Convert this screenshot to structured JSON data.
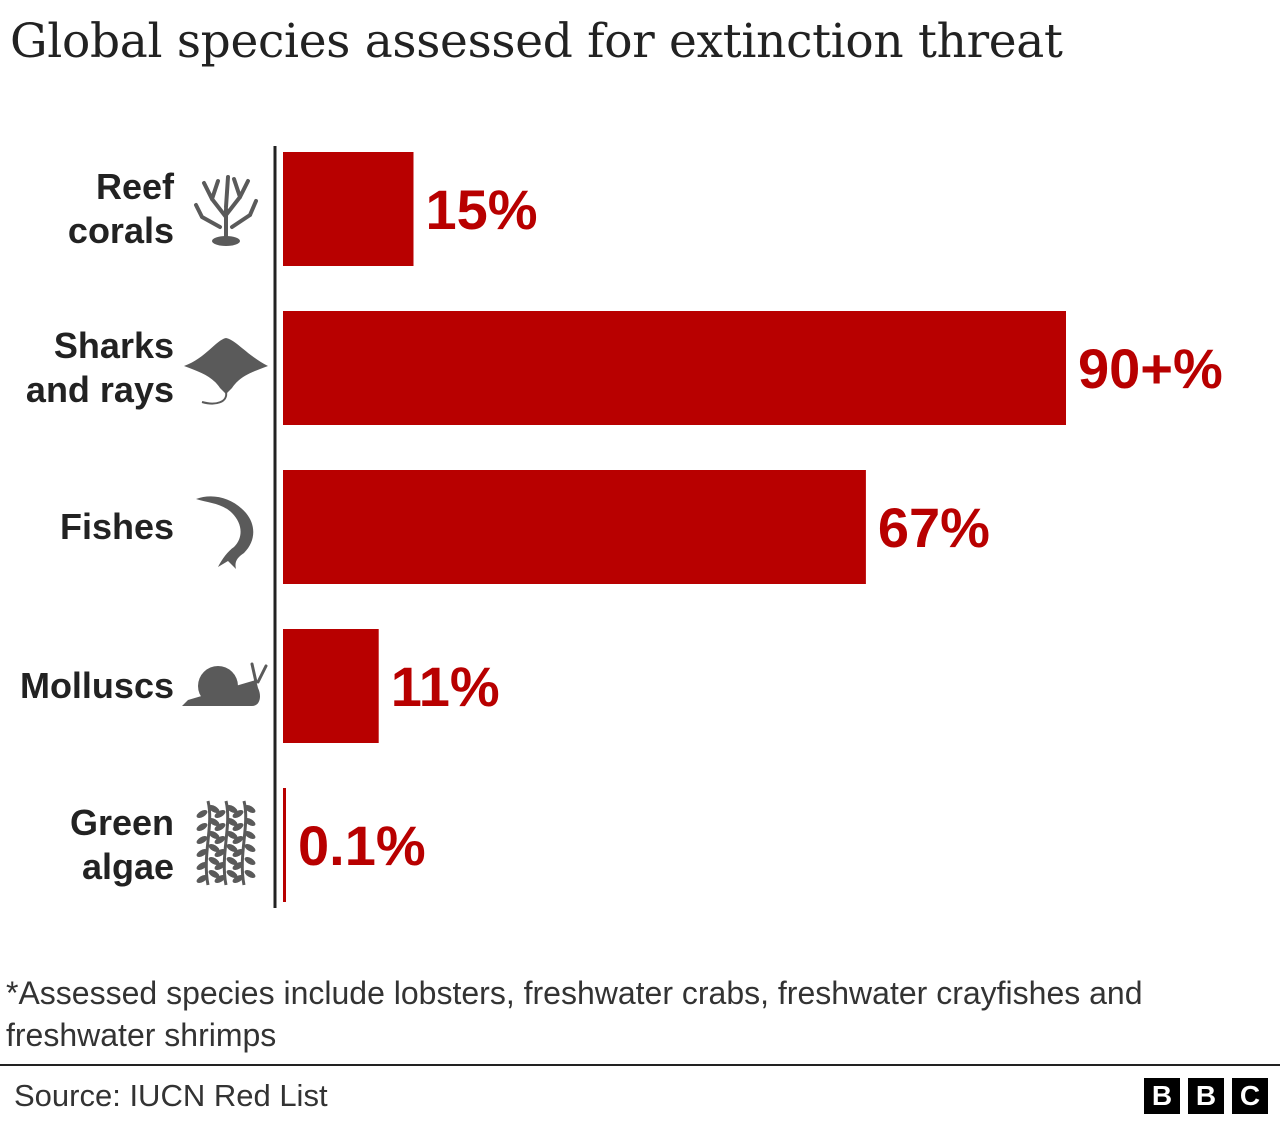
{
  "title": "Global species assessed for extinction threat",
  "chart_data": {
    "type": "bar",
    "orientation": "horizontal",
    "categories": [
      {
        "lines": [
          "Reef",
          "corals"
        ],
        "icon": "coral-icon"
      },
      {
        "lines": [
          "Sharks",
          "and rays"
        ],
        "icon": "manta-ray-icon"
      },
      {
        "lines": [
          "Fishes"
        ],
        "icon": "fish-icon"
      },
      {
        "lines": [
          "Molluscs"
        ],
        "icon": "snail-icon"
      },
      {
        "lines": [
          "Green",
          "algae"
        ],
        "icon": "algae-icon"
      }
    ],
    "values": [
      15,
      90,
      67,
      11,
      0.1
    ],
    "value_labels": [
      "15%",
      "90+%",
      "67%",
      "11%",
      "0.1%"
    ],
    "xlim": [
      0,
      100
    ],
    "bar_color": "#b80000",
    "icon_color": "#5a5a5a",
    "grid": false
  },
  "footnote": "*Assessed species include lobsters, freshwater crabs, freshwater crayfishes and freshwater shrimps",
  "source": "Source: IUCN Red List",
  "logo": [
    "B",
    "B",
    "C"
  ]
}
